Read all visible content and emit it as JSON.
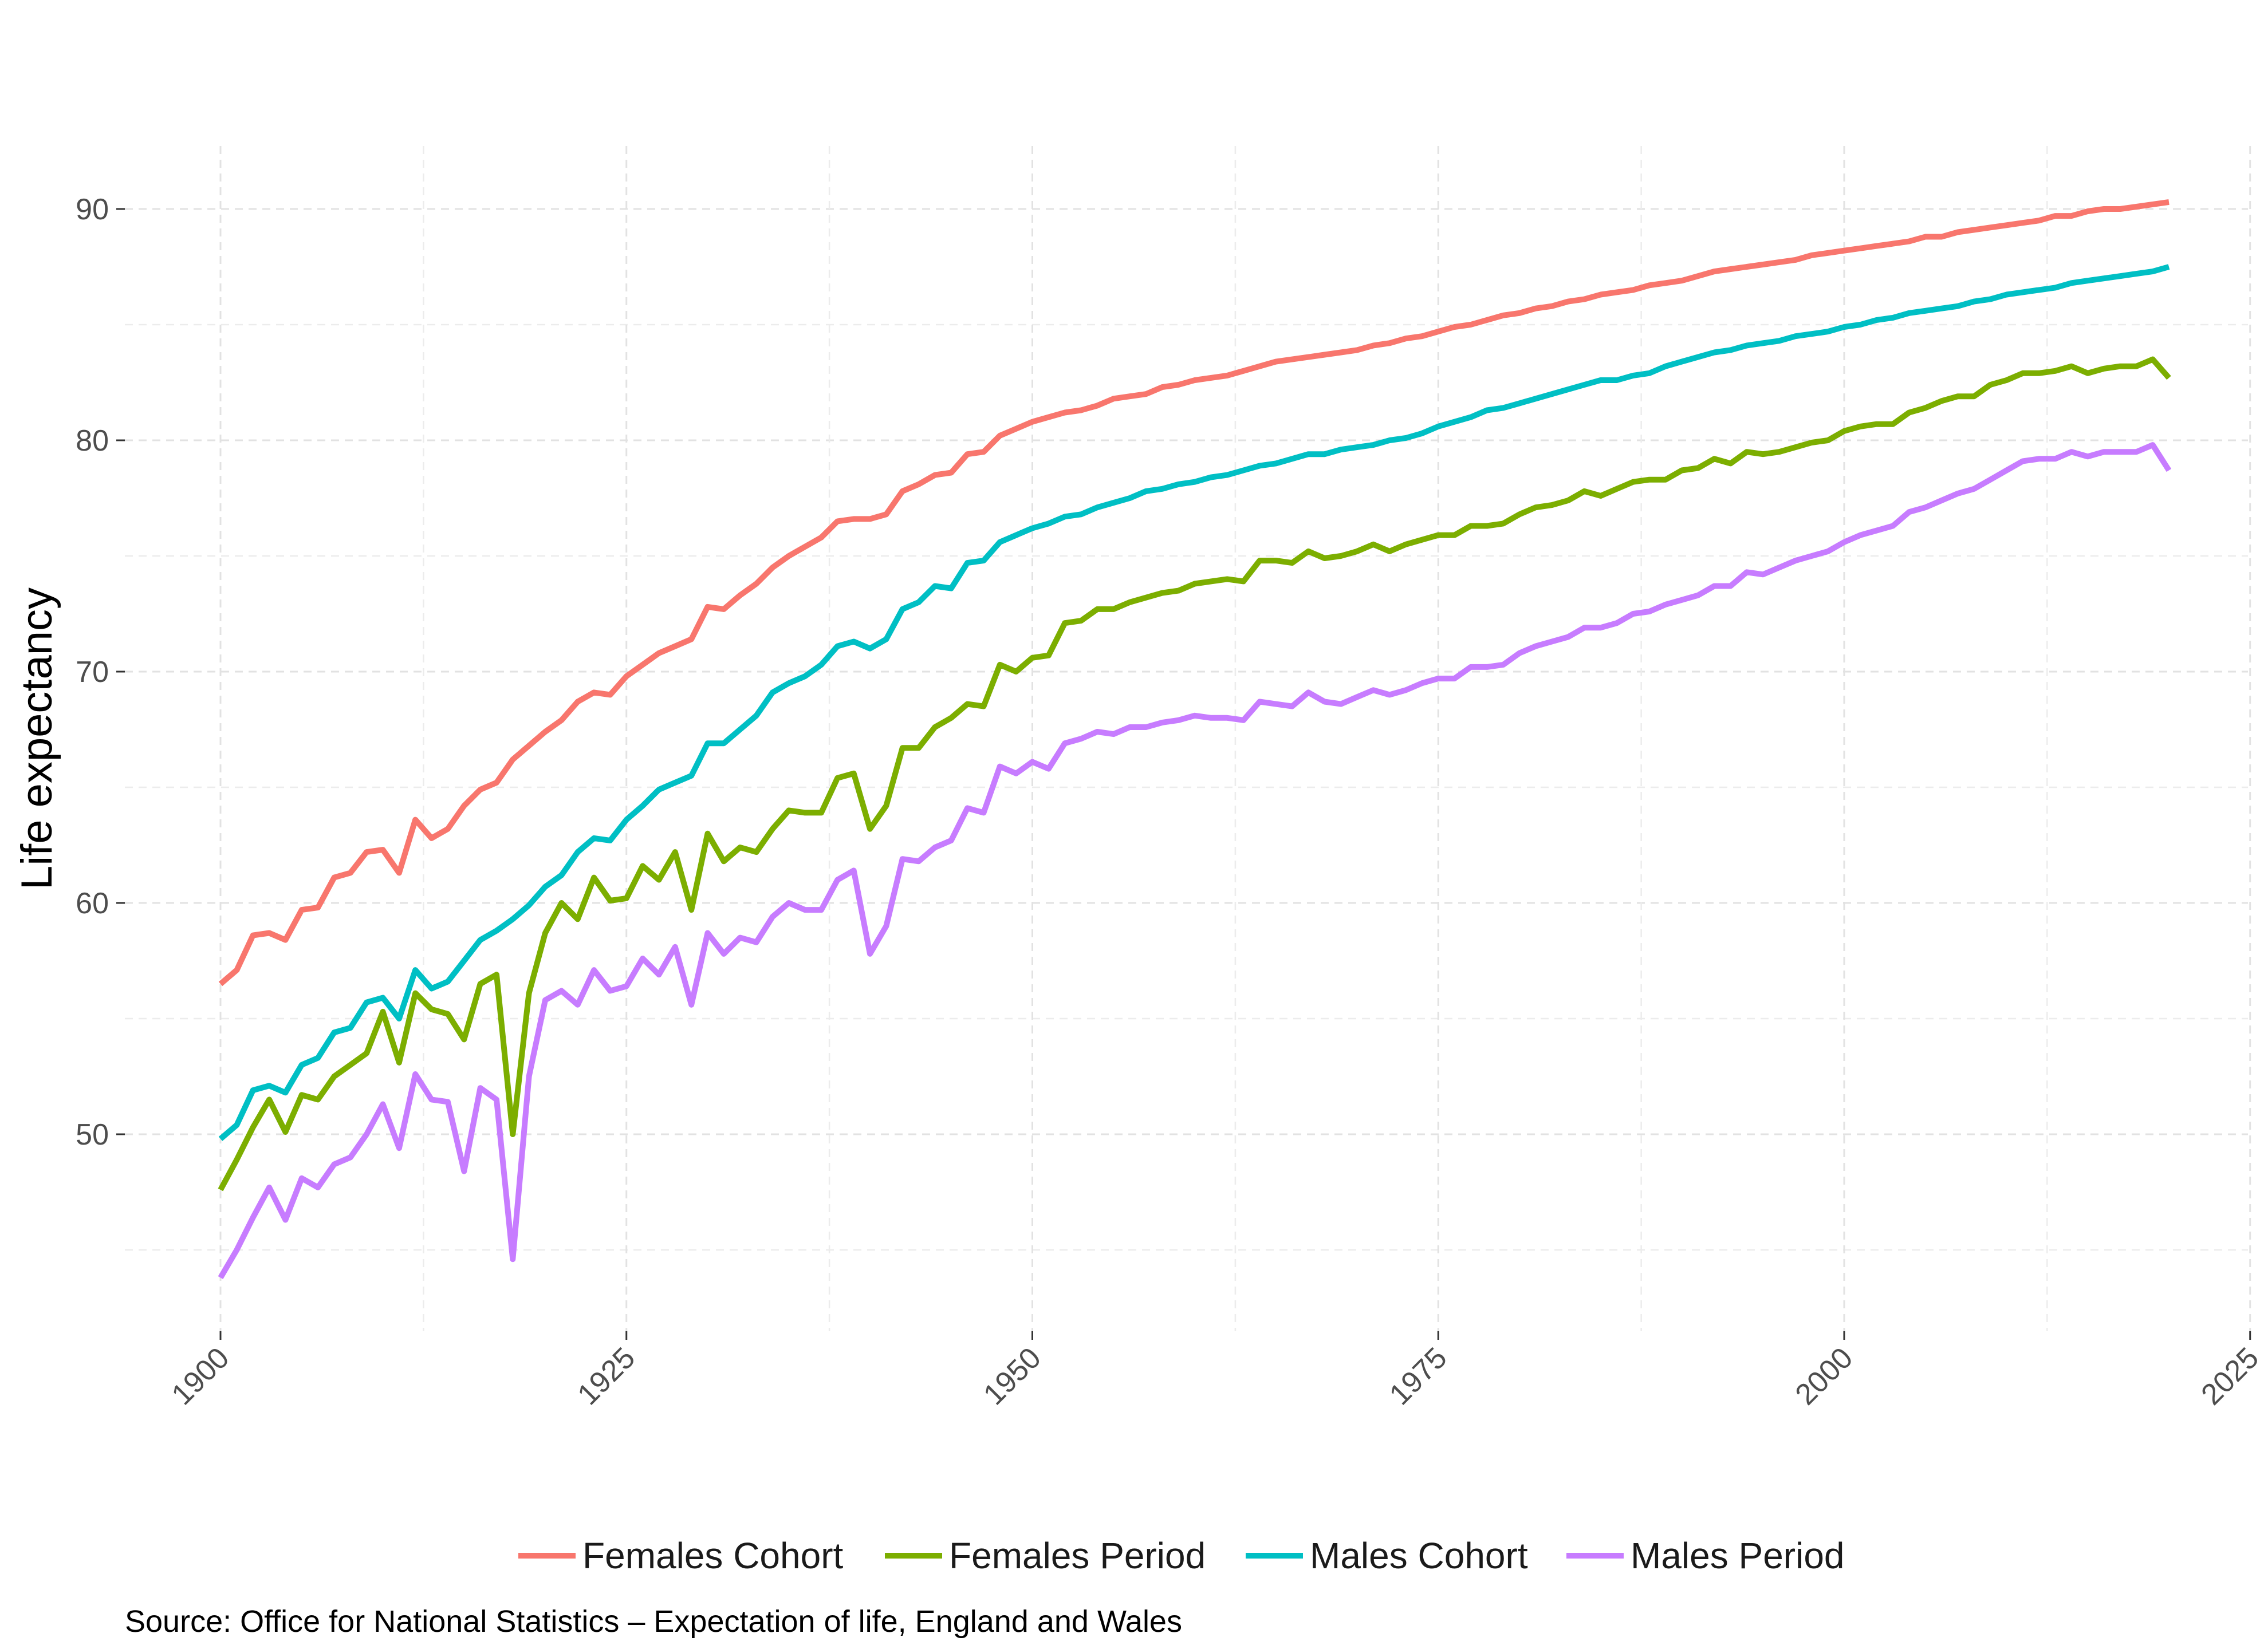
{
  "chart_data": {
    "type": "line",
    "title": "",
    "xlabel": "",
    "ylabel": "Life expectancy",
    "caption": "Source: Office for National Statistics – Expectation of life, England and Wales",
    "xlim": [
      1900,
      2025
    ],
    "ylim": [
      42,
      93
    ],
    "x_ticks": [
      1900,
      1925,
      1950,
      1975,
      2000,
      2025
    ],
    "x_minor_ticks": [
      1912.5,
      1937.5,
      1962.5,
      1987.5,
      2012.5
    ],
    "y_ticks": [
      50,
      60,
      70,
      80,
      90
    ],
    "y_minor_ticks": [
      45,
      55,
      65,
      75,
      85
    ],
    "grid": true,
    "legend_position": "bottom",
    "x": [
      1900,
      1901,
      1902,
      1903,
      1904,
      1905,
      1906,
      1907,
      1908,
      1909,
      1910,
      1911,
      1912,
      1913,
      1914,
      1915,
      1916,
      1917,
      1918,
      1919,
      1920,
      1921,
      1922,
      1923,
      1924,
      1925,
      1926,
      1927,
      1928,
      1929,
      1930,
      1931,
      1932,
      1933,
      1934,
      1935,
      1936,
      1937,
      1938,
      1939,
      1940,
      1941,
      1942,
      1943,
      1944,
      1945,
      1946,
      1947,
      1948,
      1949,
      1950,
      1951,
      1952,
      1953,
      1954,
      1955,
      1956,
      1957,
      1958,
      1959,
      1960,
      1961,
      1962,
      1963,
      1964,
      1965,
      1966,
      1967,
      1968,
      1969,
      1970,
      1971,
      1972,
      1973,
      1974,
      1975,
      1976,
      1977,
      1978,
      1979,
      1980,
      1981,
      1982,
      1983,
      1984,
      1985,
      1986,
      1987,
      1988,
      1989,
      1990,
      1991,
      1992,
      1993,
      1994,
      1995,
      1996,
      1997,
      1998,
      1999,
      2000,
      2001,
      2002,
      2003,
      2004,
      2005,
      2006,
      2007,
      2008,
      2009,
      2010,
      2011,
      2012,
      2013,
      2014,
      2015,
      2016,
      2017,
      2018,
      2019,
      2020
    ],
    "series": [
      {
        "name": "Females Cohort",
        "color": "#F8766D",
        "values": [
          56.5,
          57.1,
          58.6,
          58.7,
          58.4,
          59.7,
          59.8,
          61.1,
          61.3,
          62.2,
          62.3,
          61.3,
          63.6,
          62.8,
          63.2,
          64.2,
          64.9,
          65.2,
          66.2,
          66.8,
          67.4,
          67.9,
          68.7,
          69.1,
          69.0,
          69.8,
          70.3,
          70.8,
          71.1,
          71.4,
          72.8,
          72.7,
          73.3,
          73.8,
          74.5,
          75.0,
          75.4,
          75.8,
          76.5,
          76.6,
          76.6,
          76.8,
          77.8,
          78.1,
          78.5,
          78.6,
          79.4,
          79.5,
          80.2,
          80.5,
          80.8,
          81.0,
          81.2,
          81.3,
          81.5,
          81.8,
          81.9,
          82.0,
          82.3,
          82.4,
          82.6,
          82.7,
          82.8,
          83.0,
          83.2,
          83.4,
          83.5,
          83.6,
          83.7,
          83.8,
          83.9,
          84.1,
          84.2,
          84.4,
          84.5,
          84.7,
          84.9,
          85.0,
          85.2,
          85.4,
          85.5,
          85.7,
          85.8,
          86.0,
          86.1,
          86.3,
          86.4,
          86.5,
          86.7,
          86.8,
          86.9,
          87.1,
          87.3,
          87.4,
          87.5,
          87.6,
          87.7,
          87.8,
          88.0,
          88.1,
          88.2,
          88.3,
          88.4,
          88.5,
          88.6,
          88.8,
          88.8,
          89.0,
          89.1,
          89.2,
          89.3,
          89.4,
          89.5,
          89.7,
          89.7,
          89.9,
          90.0,
          90.0,
          90.1,
          90.2,
          90.3
        ]
      },
      {
        "name": "Females Period",
        "color": "#7CAE00",
        "values": [
          47.6,
          48.9,
          50.3,
          51.5,
          50.1,
          51.7,
          51.5,
          52.5,
          53.0,
          53.5,
          55.3,
          53.1,
          56.1,
          55.4,
          55.2,
          54.1,
          56.5,
          56.9,
          50.0,
          56.1,
          58.7,
          60.0,
          59.3,
          61.1,
          60.1,
          60.2,
          61.6,
          61.0,
          62.2,
          59.7,
          63.0,
          61.8,
          62.4,
          62.2,
          63.2,
          64.0,
          63.9,
          63.9,
          65.4,
          65.6,
          63.2,
          64.2,
          66.7,
          66.7,
          67.6,
          68.0,
          68.6,
          68.5,
          70.3,
          70.0,
          70.6,
          70.7,
          72.1,
          72.2,
          72.7,
          72.7,
          73.0,
          73.2,
          73.4,
          73.5,
          73.8,
          73.9,
          74.0,
          73.9,
          74.8,
          74.8,
          74.7,
          75.2,
          74.9,
          75.0,
          75.2,
          75.5,
          75.2,
          75.5,
          75.7,
          75.9,
          75.9,
          76.3,
          76.3,
          76.4,
          76.8,
          77.1,
          77.2,
          77.4,
          77.8,
          77.6,
          77.9,
          78.2,
          78.3,
          78.3,
          78.7,
          78.8,
          79.2,
          79.0,
          79.5,
          79.4,
          79.5,
          79.7,
          79.9,
          80.0,
          80.4,
          80.6,
          80.7,
          80.7,
          81.2,
          81.4,
          81.7,
          81.9,
          81.9,
          82.4,
          82.6,
          82.9,
          82.9,
          83.0,
          83.2,
          82.9,
          83.1,
          83.2,
          83.2,
          83.5,
          82.7
        ]
      },
      {
        "name": "Males Cohort",
        "color": "#00BFC4",
        "values": [
          49.8,
          50.4,
          51.9,
          52.1,
          51.8,
          53.0,
          53.3,
          54.4,
          54.6,
          55.7,
          55.9,
          55.0,
          57.1,
          56.3,
          56.6,
          57.5,
          58.4,
          58.8,
          59.3,
          59.9,
          60.7,
          61.2,
          62.2,
          62.8,
          62.7,
          63.6,
          64.2,
          64.9,
          65.2,
          65.5,
          66.9,
          66.9,
          67.5,
          68.1,
          69.1,
          69.5,
          69.8,
          70.3,
          71.1,
          71.3,
          71.0,
          71.4,
          72.7,
          73.0,
          73.7,
          73.6,
          74.7,
          74.8,
          75.6,
          75.9,
          76.2,
          76.4,
          76.7,
          76.8,
          77.1,
          77.3,
          77.5,
          77.8,
          77.9,
          78.1,
          78.2,
          78.4,
          78.5,
          78.7,
          78.9,
          79.0,
          79.2,
          79.4,
          79.4,
          79.6,
          79.7,
          79.8,
          80.0,
          80.1,
          80.3,
          80.6,
          80.8,
          81.0,
          81.3,
          81.4,
          81.6,
          81.8,
          82.0,
          82.2,
          82.4,
          82.6,
          82.6,
          82.8,
          82.9,
          83.2,
          83.4,
          83.6,
          83.8,
          83.9,
          84.1,
          84.2,
          84.3,
          84.5,
          84.6,
          84.7,
          84.9,
          85.0,
          85.2,
          85.3,
          85.5,
          85.6,
          85.7,
          85.8,
          86.0,
          86.1,
          86.3,
          86.4,
          86.5,
          86.6,
          86.8,
          86.9,
          87.0,
          87.1,
          87.2,
          87.3,
          87.5
        ]
      },
      {
        "name": "Males Period",
        "color": "#C77CFF",
        "values": [
          43.8,
          45.0,
          46.4,
          47.7,
          46.3,
          48.1,
          47.7,
          48.7,
          49.0,
          50.0,
          51.3,
          49.4,
          52.6,
          51.5,
          51.4,
          48.4,
          52.0,
          51.5,
          44.6,
          52.5,
          55.8,
          56.2,
          55.6,
          57.1,
          56.2,
          56.4,
          57.6,
          56.9,
          58.1,
          55.6,
          58.7,
          57.8,
          58.5,
          58.3,
          59.4,
          60.0,
          59.7,
          59.7,
          61.0,
          61.4,
          57.8,
          59.0,
          61.9,
          61.8,
          62.4,
          62.7,
          64.1,
          63.9,
          65.9,
          65.6,
          66.1,
          65.8,
          66.9,
          67.1,
          67.4,
          67.3,
          67.6,
          67.6,
          67.8,
          67.9,
          68.1,
          68.0,
          68.0,
          67.9,
          68.7,
          68.6,
          68.5,
          69.1,
          68.7,
          68.6,
          68.9,
          69.2,
          69.0,
          69.2,
          69.5,
          69.7,
          69.7,
          70.2,
          70.2,
          70.3,
          70.8,
          71.1,
          71.3,
          71.5,
          71.9,
          71.9,
          72.1,
          72.5,
          72.6,
          72.9,
          73.1,
          73.3,
          73.7,
          73.7,
          74.3,
          74.2,
          74.5,
          74.8,
          75.0,
          75.2,
          75.6,
          75.9,
          76.1,
          76.3,
          76.9,
          77.1,
          77.4,
          77.7,
          77.9,
          78.3,
          78.7,
          79.1,
          79.2,
          79.2,
          79.5,
          79.3,
          79.5,
          79.5,
          79.5,
          79.8,
          78.7
        ]
      }
    ]
  }
}
